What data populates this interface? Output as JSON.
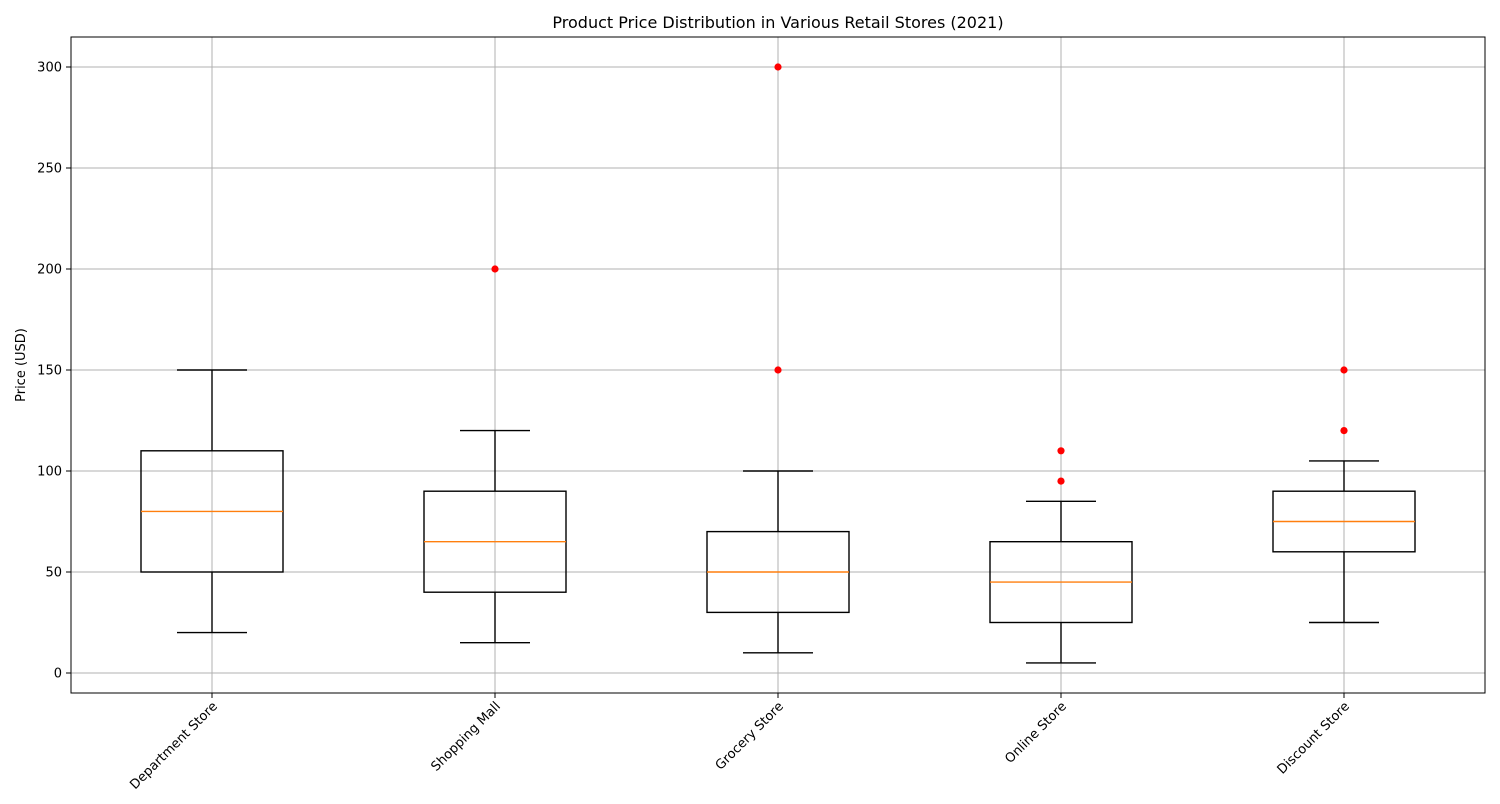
{
  "chart_data": {
    "type": "box",
    "title": "Product Price Distribution in Various Retail Stores (2021)",
    "xlabel": "",
    "ylabel": "Price (USD)",
    "ylim": [
      -10,
      315
    ],
    "yticks": [
      0,
      50,
      100,
      150,
      200,
      250,
      300
    ],
    "grid": true,
    "categories": [
      "Department Store",
      "Shopping Mall",
      "Grocery Store",
      "Online Store",
      "Discount Store"
    ],
    "boxes": [
      {
        "category": "Department Store",
        "whisker_low": 20,
        "q1": 50,
        "median": 80,
        "q3": 110,
        "whisker_high": 150,
        "outliers": []
      },
      {
        "category": "Shopping Mall",
        "whisker_low": 15,
        "q1": 40,
        "median": 65,
        "q3": 90,
        "whisker_high": 120,
        "outliers": [
          200
        ]
      },
      {
        "category": "Grocery Store",
        "whisker_low": 10,
        "q1": 30,
        "median": 50,
        "q3": 70,
        "whisker_high": 100,
        "outliers": [
          150,
          300
        ]
      },
      {
        "category": "Online Store",
        "whisker_low": 5,
        "q1": 25,
        "median": 45,
        "q3": 65,
        "whisker_high": 85,
        "outliers": [
          95,
          110
        ]
      },
      {
        "category": "Discount Store",
        "whisker_low": 25,
        "q1": 60,
        "median": 75,
        "q3": 90,
        "whisker_high": 105,
        "outliers": [
          120,
          150
        ]
      }
    ],
    "colors": {
      "box": "#000000",
      "median": "#ff7f0e",
      "outlier": "#ff0000",
      "grid": "#b0b0b0"
    }
  }
}
